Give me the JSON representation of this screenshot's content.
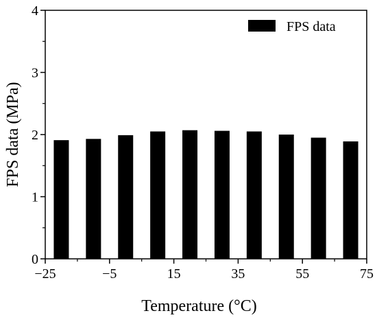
{
  "chart_data": {
    "type": "bar",
    "xlabel": "Temperature (°C)",
    "ylabel": "FPS data (MPa)",
    "x": [
      -20,
      -10,
      0,
      10,
      20,
      30,
      40,
      50,
      60,
      70
    ],
    "series": [
      {
        "name": "FPS data",
        "values": [
          1.91,
          1.93,
          1.99,
          2.05,
          2.07,
          2.06,
          2.05,
          2.0,
          1.95,
          1.89
        ],
        "color": "#000000"
      }
    ],
    "xlim": [
      -25,
      75
    ],
    "ylim": [
      0,
      4
    ],
    "xticks": [
      -25,
      -5,
      15,
      35,
      55,
      75
    ],
    "xtick_labels": [
      "−25",
      "−5",
      "15",
      "35",
      "55",
      "75"
    ],
    "yticks": [
      0,
      1,
      2,
      3,
      4
    ],
    "ytick_labels": [
      "0",
      "1",
      "2",
      "3",
      "4"
    ],
    "grid": false,
    "legend": {
      "position": "top-right"
    }
  }
}
